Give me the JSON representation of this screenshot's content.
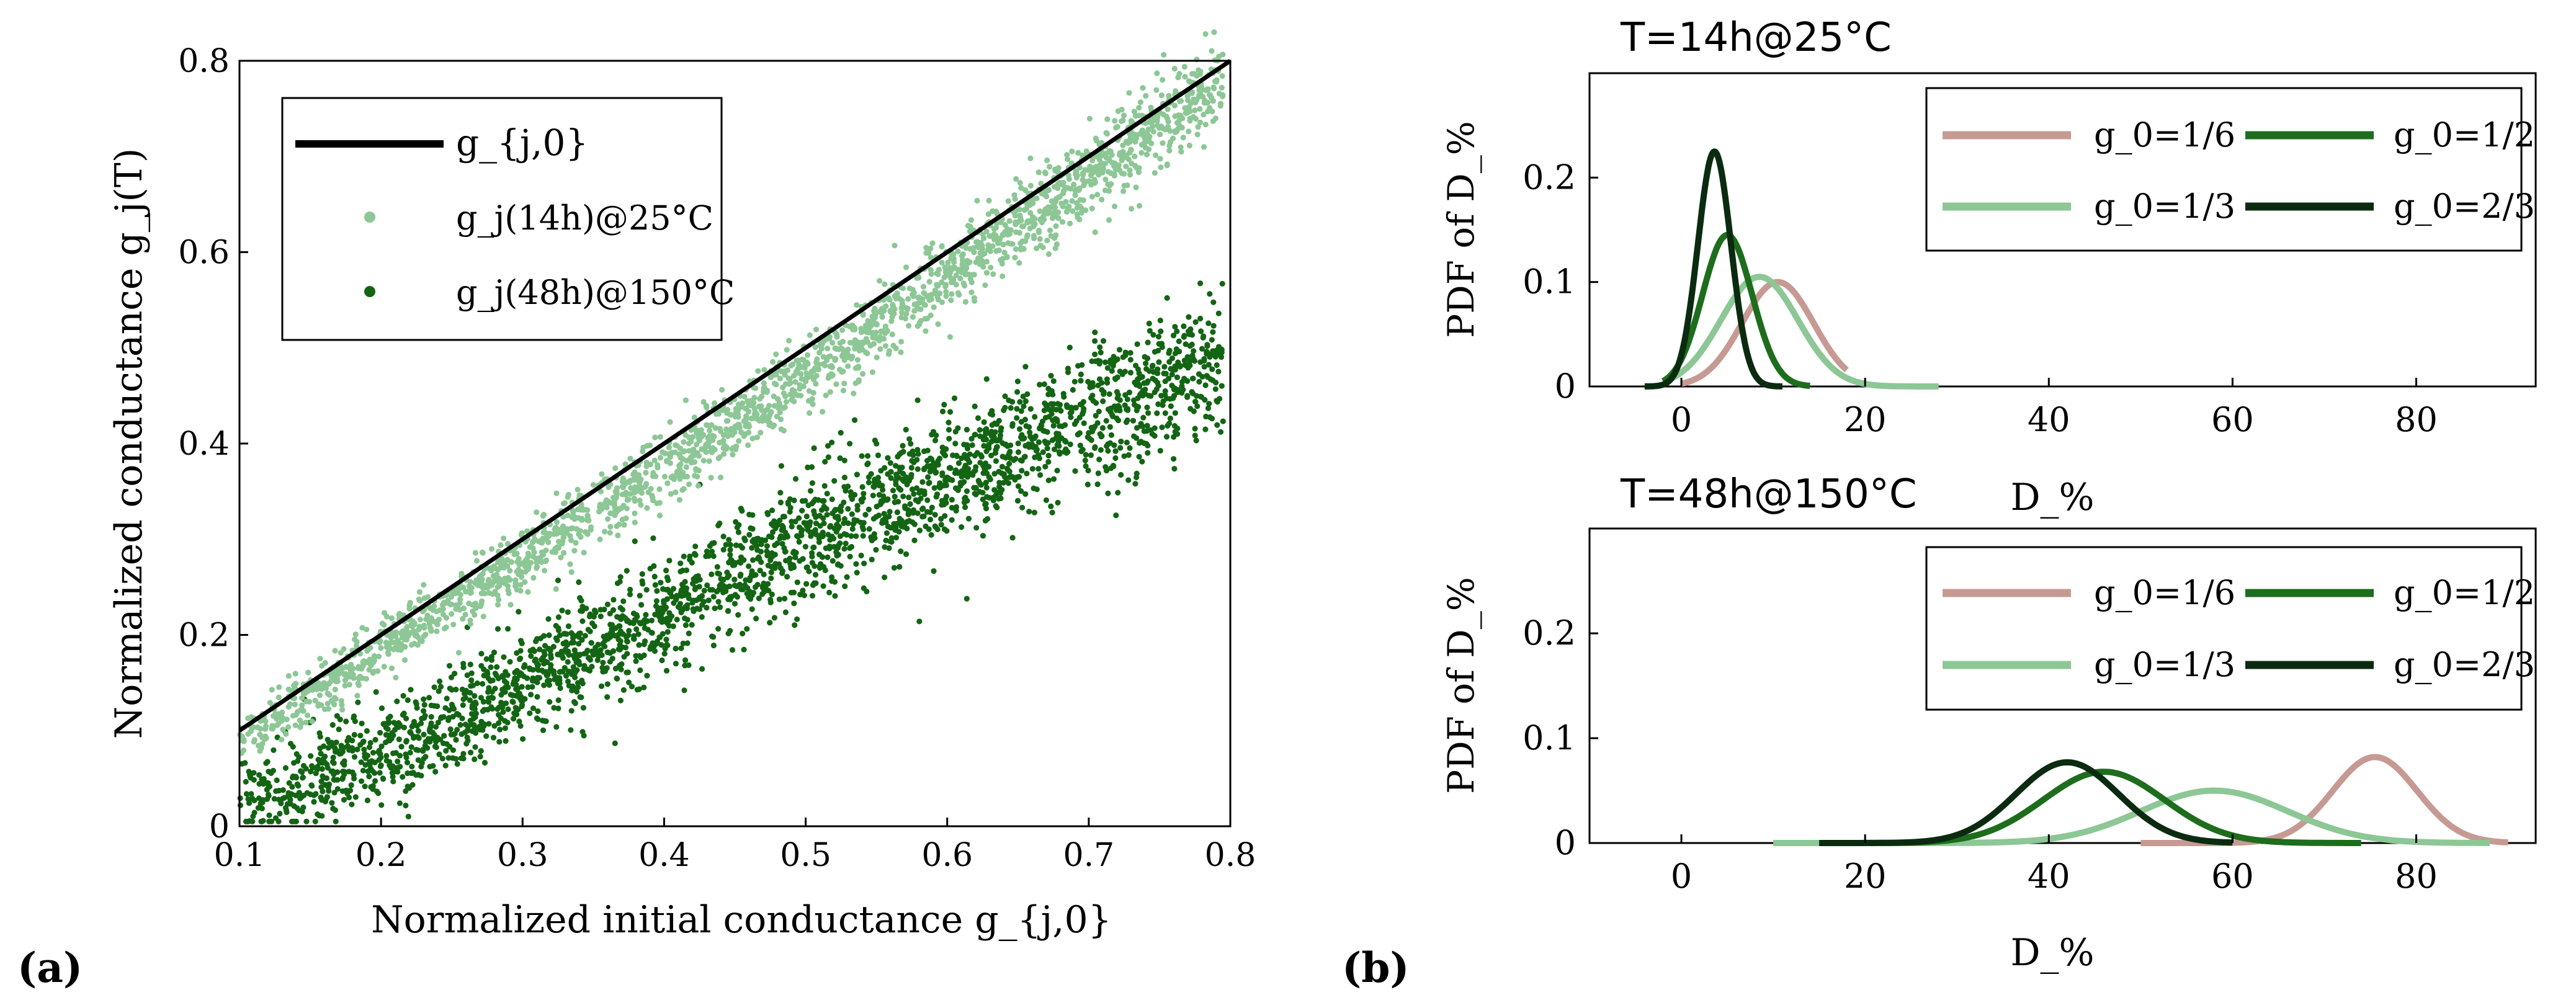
{
  "colors": {
    "ideal": "#000000",
    "light_green": "#8cc795",
    "dark_green": "#136513",
    "pink": "#c69a93",
    "mid_green": "#1d6d1d",
    "very_dark_green": "#0b2b10"
  },
  "chart_data": [
    {
      "id": "a",
      "type": "scatter",
      "panel_label": "(a)",
      "xlabel": "Normalized initial conductance g_{j,0}",
      "ylabel": "Normalized conductance g_j(T)",
      "xlim": [
        0.1,
        0.8
      ],
      "ylim": [
        0,
        0.8
      ],
      "xticks": [
        0.1,
        0.2,
        0.3,
        0.4,
        0.5,
        0.6,
        0.7,
        0.8
      ],
      "xtick_labels": [
        "0.1",
        "0.2",
        "0.3",
        "0.4",
        "0.5",
        "0.6",
        "0.7",
        "0.8"
      ],
      "yticks": [
        0,
        0.2,
        0.4,
        0.6,
        0.8
      ],
      "ytick_labels": [
        "0",
        "0.2",
        "0.4",
        "0.6",
        "0.8"
      ],
      "legend": [
        {
          "label": "g_{j,0}",
          "kind": "line",
          "color": "#000000"
        },
        {
          "label": "g_j(14h)@25°C",
          "kind": "dot",
          "color": "#8cc795"
        },
        {
          "label": "g_j(48h)@150°C",
          "kind": "dot",
          "color": "#136513"
        }
      ],
      "series": [
        {
          "name": "g_{j,0}",
          "kind": "line",
          "x": [
            0.1,
            0.8
          ],
          "y": [
            0.1,
            0.8
          ]
        },
        {
          "name": "g_j(14h)@25°C",
          "kind": "scatter_band",
          "x_range": [
            0.1,
            0.795
          ],
          "trend_x": [
            0.1,
            0.2,
            0.3,
            0.4,
            0.5,
            0.6,
            0.7,
            0.79
          ],
          "trend_y": [
            0.088,
            0.185,
            0.28,
            0.375,
            0.47,
            0.575,
            0.68,
            0.775
          ],
          "spread": 0.018,
          "n_points": 2200
        },
        {
          "name": "g_j(48h)@150°C",
          "kind": "scatter_band",
          "x_range": [
            0.1,
            0.795
          ],
          "trend_x": [
            0.1,
            0.2,
            0.3,
            0.4,
            0.5,
            0.6,
            0.7,
            0.79
          ],
          "trend_y": [
            0.022,
            0.075,
            0.15,
            0.225,
            0.3,
            0.365,
            0.425,
            0.49
          ],
          "spread": 0.03,
          "n_points": 2600
        }
      ]
    },
    {
      "id": "b-top",
      "type": "line",
      "panel_label": "(b)",
      "title": "T=14h@25°C",
      "xlabel": "D_%",
      "ylabel": "PDF of D_%",
      "xlim": [
        -10,
        93
      ],
      "ylim": [
        0,
        0.3
      ],
      "xticks": [
        0,
        20,
        40,
        60,
        80
      ],
      "xtick_labels": [
        "0",
        "20",
        "40",
        "60",
        "80"
      ],
      "yticks": [
        0,
        0.1,
        0.2
      ],
      "ytick_labels": [
        "0",
        "0.1",
        "0.2"
      ],
      "legend_labels": [
        "g_0=1/6",
        "g_0=1/2",
        "g_0=1/3",
        "g_0=2/3"
      ],
      "series": [
        {
          "name": "g_0=1/6",
          "color": "#c69a93",
          "mu": 10.5,
          "sigma": 3.9,
          "peak": 0.1,
          "range": [
            0,
            18
          ]
        },
        {
          "name": "g_0=1/3",
          "color": "#8cc795",
          "mu": 8.5,
          "sigma": 4.2,
          "peak": 0.105,
          "range": [
            -1,
            28
          ]
        },
        {
          "name": "g_0=1/2",
          "color": "#1d6d1d",
          "mu": 5.0,
          "sigma": 2.7,
          "peak": 0.145,
          "range": [
            -2,
            14
          ]
        },
        {
          "name": "g_0=2/3",
          "color": "#0b2b10",
          "mu": 3.6,
          "sigma": 1.8,
          "peak": 0.225,
          "range": [
            -4,
            11
          ]
        }
      ]
    },
    {
      "id": "b-bottom",
      "type": "line",
      "title": "T=48h@150°C",
      "xlabel": "D_%",
      "ylabel": "PDF of D_%",
      "xlim": [
        -10,
        93
      ],
      "ylim": [
        0,
        0.3
      ],
      "xticks": [
        0,
        20,
        40,
        60,
        80
      ],
      "xtick_labels": [
        "0",
        "20",
        "40",
        "60",
        "80"
      ],
      "yticks": [
        0,
        0.1,
        0.2
      ],
      "ytick_labels": [
        "0",
        "0.1",
        "0.2"
      ],
      "legend_labels": [
        "g_0=1/6",
        "g_0=1/2",
        "g_0=1/3",
        "g_0=2/3"
      ],
      "series": [
        {
          "name": "g_0=1/6",
          "color": "#c69a93",
          "mu": 75.5,
          "sigma": 4.6,
          "peak": 0.082,
          "range": [
            50,
            90
          ]
        },
        {
          "name": "g_0=1/3",
          "color": "#8cc795",
          "mu": 58,
          "sigma": 8.0,
          "peak": 0.05,
          "range": [
            10,
            88
          ]
        },
        {
          "name": "g_0=1/2",
          "color": "#1d6d1d",
          "mu": 46,
          "sigma": 6.6,
          "peak": 0.068,
          "range": [
            16,
            74
          ]
        },
        {
          "name": "g_0=2/3",
          "color": "#0b2b10",
          "mu": 42,
          "sigma": 5.6,
          "peak": 0.077,
          "range": [
            15,
            60
          ]
        }
      ]
    }
  ]
}
